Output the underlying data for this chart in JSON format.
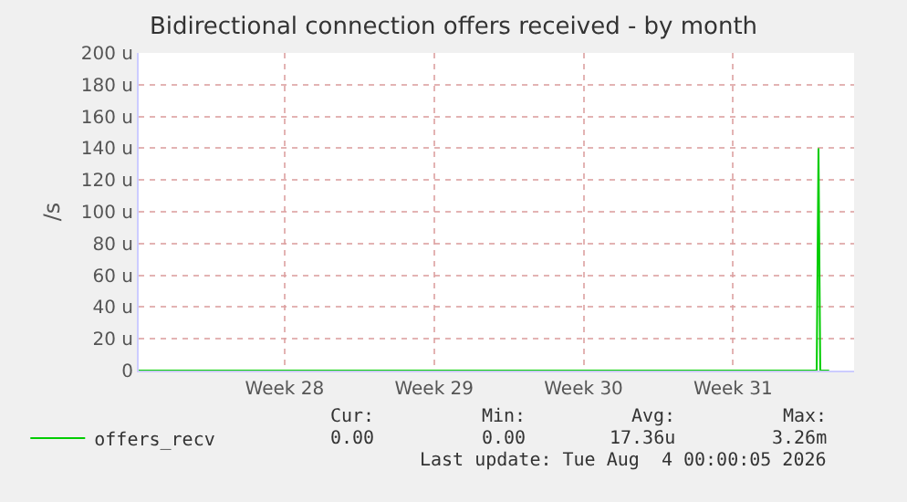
{
  "chart_data": {
    "type": "line",
    "title": "Bidirectional connection offers received - by month",
    "ylabel": "/s",
    "series": [
      {
        "name": "offers_recv",
        "color": "#00cc00",
        "x": [
          "2026-07-02T16:00",
          "2026-08-03T08:00",
          "2026-08-03T10:00",
          "2026-08-03T12:00",
          "2026-08-03T14:00",
          "2026-08-04T00:00"
        ],
        "values": [
          0,
          0,
          0,
          140,
          0,
          0
        ]
      }
    ],
    "xlim": [
      "2026-07-02T16:00",
      "2026-08-05T04:00"
    ],
    "xticks": [
      {
        "value": "2026-07-09T12:00",
        "label": "Week 28"
      },
      {
        "value": "2026-07-16T12:00",
        "label": "Week 29"
      },
      {
        "value": "2026-07-23T12:00",
        "label": "Week 30"
      },
      {
        "value": "2026-07-30T12:00",
        "label": "Week 31"
      }
    ],
    "ylim": [
      0,
      200
    ],
    "yticks": [
      0,
      {
        "value": 20,
        "label": "20 u"
      },
      {
        "value": 40,
        "label": "40 u"
      },
      {
        "value": 60,
        "label": "60 u"
      },
      {
        "value": 80,
        "label": "80 u"
      },
      {
        "value": 100,
        "label": "100 u"
      },
      {
        "value": 120,
        "label": "120 u"
      },
      {
        "value": 140,
        "label": "140 u"
      },
      {
        "value": 160,
        "label": "160 u"
      },
      {
        "value": 180,
        "label": "180 u"
      },
      {
        "value": 200,
        "label": "200 u"
      }
    ],
    "grid": true,
    "legend": "bottom",
    "marker": "none",
    "line_style": "solid",
    "annotations": [
      "Cur:",
      "Min:",
      "Avg:",
      "Max:",
      "0.00",
      "0.00",
      "17.36u",
      "3.26m",
      "Last update: Tue Aug  4 00:00:05 2026"
    ]
  }
}
